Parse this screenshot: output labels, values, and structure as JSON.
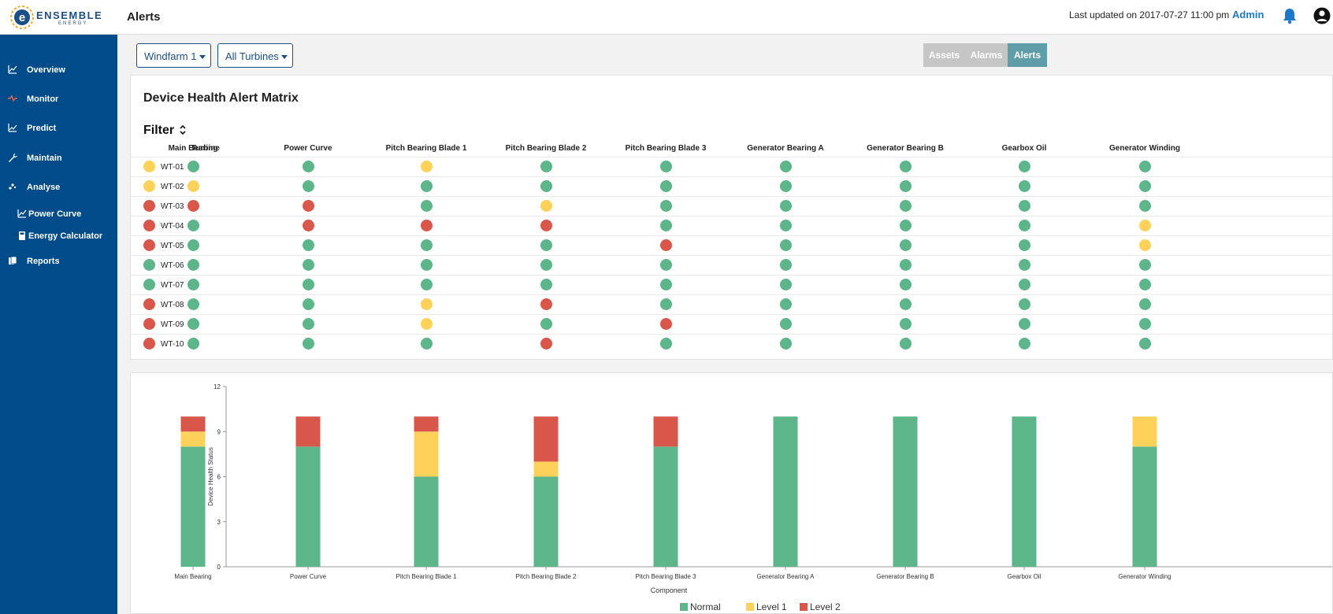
{
  "header": {
    "logo_text": "ENSEMBLE",
    "logo_sub": "ENERGY",
    "title": "Alerts",
    "last_updated": "Last updated on 2017-07-27 11:00 pm",
    "user_label": "Admin",
    "bell_icon": "bell-icon",
    "user_icon": "user-circle-icon"
  },
  "sidebar": {
    "items": [
      {
        "label": "Overview",
        "icon": "line-chart-icon",
        "sub": false
      },
      {
        "label": "Monitor",
        "icon": "pulse-icon",
        "sub": false
      },
      {
        "label": "Predict",
        "icon": "trend-chart-icon",
        "sub": false
      },
      {
        "label": "Maintain",
        "icon": "wrench-icon",
        "sub": false
      },
      {
        "label": "Analyse",
        "icon": "scatter-icon",
        "sub": false
      },
      {
        "label": "Power Curve",
        "icon": "line-chart-icon",
        "sub": true
      },
      {
        "label": "Energy Calculator",
        "icon": "calculator-icon",
        "sub": true
      },
      {
        "label": "Reports",
        "icon": "report-icon",
        "sub": false
      }
    ]
  },
  "filters": {
    "windfarm": "Windfarm 1",
    "turbines": "All Turbines"
  },
  "view_tabs": [
    {
      "label": "Assets",
      "active": false
    },
    {
      "label": "Alarms",
      "active": false
    },
    {
      "label": "Alerts",
      "active": true
    }
  ],
  "colors": {
    "normal": "#5cb68a",
    "level1": "#fdd15a",
    "level2": "#d9574a",
    "sidebar": "#004b8a",
    "tab_active": "#5f9ea8",
    "tab_inactive": "#c6c6c6"
  },
  "matrix": {
    "title": "Device Health Alert Matrix",
    "filter_label": "Filter",
    "turbine_header": "Turbine",
    "columns": [
      "Main Bearing",
      "Power Curve",
      "Pitch Bearing Blade 1",
      "Pitch Bearing Blade 2",
      "Pitch Bearing Blade 3",
      "Generator Bearing A",
      "Generator Bearing B",
      "Gearbox Oil",
      "Generator Winding"
    ],
    "rows": [
      {
        "turbine": "WT-01",
        "status": 1,
        "cells": [
          0,
          0,
          1,
          0,
          0,
          0,
          0,
          0,
          0
        ]
      },
      {
        "turbine": "WT-02",
        "status": 1,
        "cells": [
          1,
          0,
          0,
          0,
          0,
          0,
          0,
          0,
          0
        ]
      },
      {
        "turbine": "WT-03",
        "status": 2,
        "cells": [
          2,
          2,
          0,
          1,
          0,
          0,
          0,
          0,
          0
        ]
      },
      {
        "turbine": "WT-04",
        "status": 2,
        "cells": [
          0,
          2,
          2,
          2,
          0,
          0,
          0,
          0,
          1
        ]
      },
      {
        "turbine": "WT-05",
        "status": 2,
        "cells": [
          0,
          0,
          0,
          0,
          2,
          0,
          0,
          0,
          1
        ]
      },
      {
        "turbine": "WT-06",
        "status": 0,
        "cells": [
          0,
          0,
          0,
          0,
          0,
          0,
          0,
          0,
          0
        ]
      },
      {
        "turbine": "WT-07",
        "status": 0,
        "cells": [
          0,
          0,
          0,
          0,
          0,
          0,
          0,
          0,
          0
        ]
      },
      {
        "turbine": "WT-08",
        "status": 2,
        "cells": [
          0,
          0,
          1,
          2,
          0,
          0,
          0,
          0,
          0
        ]
      },
      {
        "turbine": "WT-09",
        "status": 2,
        "cells": [
          0,
          0,
          1,
          0,
          2,
          0,
          0,
          0,
          0
        ]
      },
      {
        "turbine": "WT-10",
        "status": 2,
        "cells": [
          0,
          0,
          0,
          2,
          0,
          0,
          0,
          0,
          0
        ]
      }
    ]
  },
  "chart_data": {
    "type": "bar",
    "stacked": true,
    "categories": [
      "Main Bearing",
      "Power Curve",
      "Pitch Bearing Blade 1",
      "Pitch Bearing Blade 2",
      "Pitch Bearing Blade 3",
      "Generator Bearing A",
      "Generator Bearing B",
      "Gearbox Oil",
      "Generator Winding"
    ],
    "series": [
      {
        "name": "Normal",
        "color": "#5cb68a",
        "values": [
          8,
          8,
          6,
          6,
          8,
          10,
          10,
          10,
          8
        ]
      },
      {
        "name": "Level 1",
        "color": "#fdd15a",
        "values": [
          1,
          0,
          3,
          1,
          0,
          0,
          0,
          0,
          2
        ]
      },
      {
        "name": "Level 2",
        "color": "#d9574a",
        "values": [
          1,
          2,
          1,
          3,
          2,
          0,
          0,
          0,
          0
        ]
      }
    ],
    "xlabel": "Component",
    "ylabel": "Device Health Status",
    "ylim": [
      0,
      12
    ],
    "yticks": [
      0,
      3,
      6,
      9,
      12
    ],
    "grid": false,
    "legend": "bottom"
  }
}
